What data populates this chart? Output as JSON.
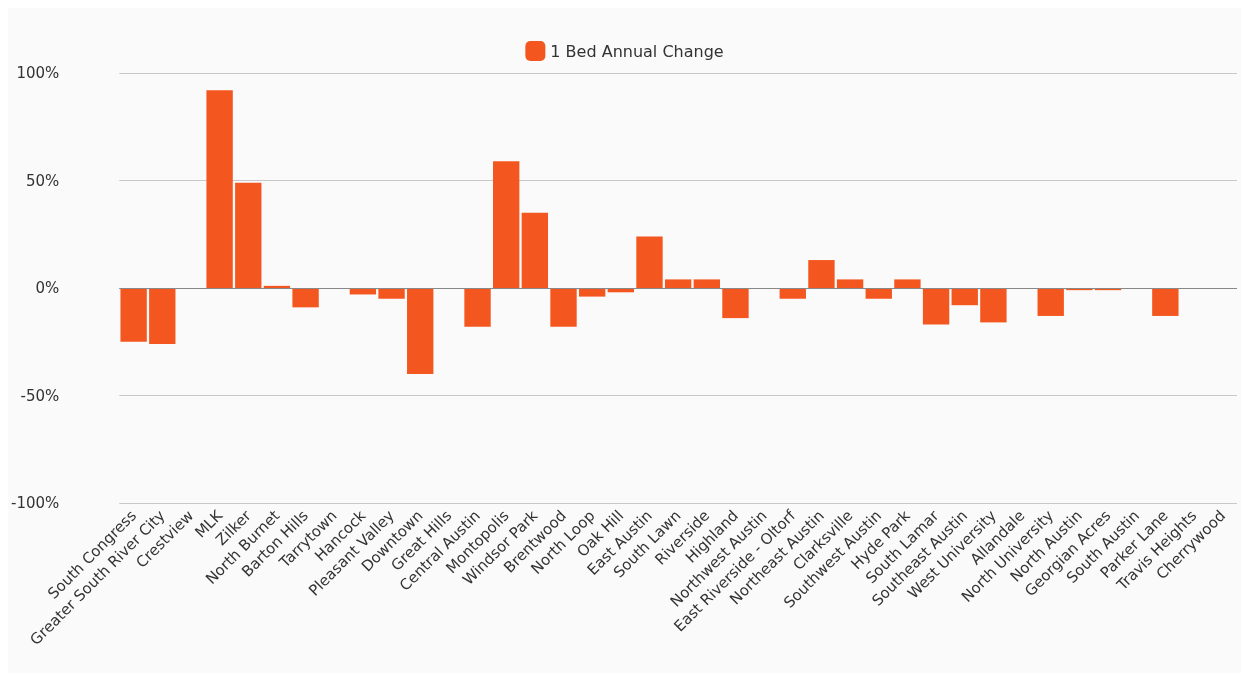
{
  "chart_data": {
    "type": "bar",
    "categories": [
      "South Congress",
      "Greater South River City",
      "Crestview",
      "MLK",
      "Zilker",
      "North Burnet",
      "Barton Hills",
      "Tarrytown",
      "Hancock",
      "Pleasant Valley",
      "Downtown",
      "Great Hills",
      "Central Austin",
      "Montopolis",
      "Windsor Park",
      "Brentwood",
      "North Loop",
      "Oak Hill",
      "East Austin",
      "South Lawn",
      "Riverside",
      "Highland",
      "Northwest Austin",
      "East Riverside - Oltorf",
      "Northeast Austin",
      "Clarksville",
      "Southwest Austin",
      "Hyde Park",
      "South Lamar",
      "Southeast Austin",
      "West University",
      "Allandale",
      "North University",
      "North Austin",
      "Georgian Acres",
      "South Austin",
      "Parker Lane",
      "Travis Heights",
      "Cherrywood"
    ],
    "series": [
      {
        "name": "1 Bed Annual Change",
        "color": "#f4561f",
        "values": [
          -25,
          -26,
          0,
          92,
          49,
          1,
          -9,
          0,
          -3,
          -5,
          -40,
          0,
          -18,
          59,
          35,
          -18,
          -4,
          -2,
          24,
          4,
          4,
          -14,
          0,
          -5,
          13,
          4,
          -5,
          4,
          -17,
          -8,
          -16,
          0,
          -13,
          -1,
          -1,
          0,
          -13,
          0,
          0
        ]
      }
    ],
    "ylim": [
      -100,
      100
    ],
    "yticks": [
      {
        "value": -100,
        "label": "-100%"
      },
      {
        "value": -50,
        "label": "-50%"
      },
      {
        "value": 0,
        "label": "0%"
      },
      {
        "value": 50,
        "label": "50%"
      },
      {
        "value": 100,
        "label": "100%"
      }
    ],
    "grid": "y",
    "legend": "top"
  }
}
